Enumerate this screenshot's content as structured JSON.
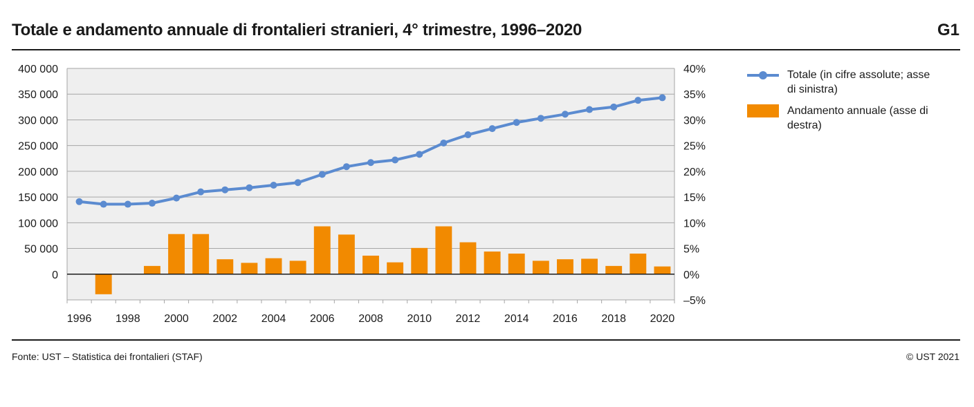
{
  "header": {
    "title": "Totale e andamento annuale di frontalieri stranieri, 4° trimestre, 1996–2020",
    "figure_code": "G1"
  },
  "footer": {
    "source": "Fonte: UST – Statistica dei frontalieri (STAF)",
    "copyright": "© UST 2021"
  },
  "legend": {
    "line_label": "Totale (in cifre assolute; asse di sinistra)",
    "bar_label": "Andamento annuale (asse di destra)"
  },
  "colors": {
    "line": "#5b8bd0",
    "bar": "#f28a00",
    "plot_bg": "#efefef",
    "grid": "#a6a6a6"
  },
  "chart_data": {
    "type": "bar+line",
    "title": "Totale e andamento annuale di frontalieri stranieri, 4° trimestre, 1996–2020",
    "x": [
      1996,
      1997,
      1998,
      1999,
      2000,
      2001,
      2002,
      2003,
      2004,
      2005,
      2006,
      2007,
      2008,
      2009,
      2010,
      2011,
      2012,
      2013,
      2014,
      2015,
      2016,
      2017,
      2018,
      2019,
      2020
    ],
    "x_tick_labels": [
      "1996",
      "1998",
      "2000",
      "2002",
      "2004",
      "2006",
      "2008",
      "2010",
      "2012",
      "2014",
      "2016",
      "2018",
      "2020"
    ],
    "series": [
      {
        "name": "Totale (in cifre assolute; asse di sinistra)",
        "kind": "line",
        "axis": "left",
        "values": [
          141000,
          136000,
          136000,
          138000,
          148000,
          160000,
          164000,
          168000,
          173000,
          178000,
          194000,
          209000,
          217000,
          222000,
          233000,
          255000,
          271000,
          283000,
          295000,
          303000,
          311000,
          320000,
          325000,
          338000,
          343000
        ]
      },
      {
        "name": "Andamento annuale (asse di destra)",
        "kind": "bar",
        "axis": "right",
        "values": [
          null,
          -3.9,
          0.1,
          1.6,
          7.8,
          7.8,
          2.9,
          2.2,
          3.1,
          2.6,
          9.3,
          7.7,
          3.6,
          2.3,
          5.1,
          9.3,
          6.2,
          4.4,
          4.0,
          2.6,
          2.9,
          3.0,
          1.6,
          4.0,
          1.5
        ]
      }
    ],
    "y_left": {
      "ylim": [
        -50000,
        400000
      ],
      "ticks": [
        0,
        50000,
        100000,
        150000,
        200000,
        250000,
        300000,
        350000,
        400000
      ],
      "tick_labels": [
        "0",
        "50 000",
        "100 000",
        "150 000",
        "200 000",
        "250 000",
        "300 000",
        "350 000",
        "400 000"
      ]
    },
    "y_right": {
      "ylim": [
        -5,
        40
      ],
      "ticks": [
        -5,
        0,
        5,
        10,
        15,
        20,
        25,
        30,
        35,
        40
      ],
      "tick_labels": [
        "–5%",
        "0%",
        "5%",
        "10%",
        "15%",
        "20%",
        "25%",
        "30%",
        "35%",
        "40%"
      ]
    },
    "grid": true,
    "legend_position": "right"
  }
}
